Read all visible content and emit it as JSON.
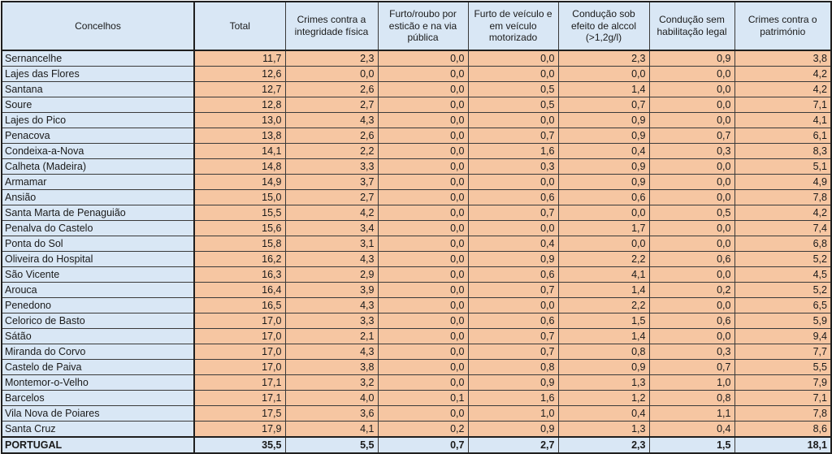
{
  "chart_data": {
    "type": "table",
    "columns": [
      "Concelhos",
      "Total",
      "Crimes contra a integridade física",
      "Furto/roubo por esticão e na via pública",
      "Furto de veículo e em veículo motorizado",
      "Condução sob efeito de alccol (>1,2g/l)",
      "Condução sem habilitação legal",
      "Crimes contra o património"
    ],
    "rows": [
      {
        "name": "Sernancelhe",
        "values": [
          "11,7",
          "2,3",
          "0,0",
          "0,0",
          "2,3",
          "0,9",
          "3,8"
        ]
      },
      {
        "name": "Lajes das Flores",
        "values": [
          "12,6",
          "0,0",
          "0,0",
          "0,0",
          "0,0",
          "0,0",
          "4,2"
        ]
      },
      {
        "name": "Santana",
        "values": [
          "12,7",
          "2,6",
          "0,0",
          "0,5",
          "1,4",
          "0,0",
          "4,2"
        ]
      },
      {
        "name": "Soure",
        "values": [
          "12,8",
          "2,7",
          "0,0",
          "0,5",
          "0,7",
          "0,0",
          "7,1"
        ]
      },
      {
        "name": "Lajes do Pico",
        "values": [
          "13,0",
          "4,3",
          "0,0",
          "0,0",
          "0,9",
          "0,0",
          "4,1"
        ]
      },
      {
        "name": "Penacova",
        "values": [
          "13,8",
          "2,6",
          "0,0",
          "0,7",
          "0,9",
          "0,7",
          "6,1"
        ]
      },
      {
        "name": "Condeixa-a-Nova",
        "values": [
          "14,1",
          "2,2",
          "0,0",
          "1,6",
          "0,4",
          "0,3",
          "8,3"
        ]
      },
      {
        "name": "Calheta (Madeira)",
        "values": [
          "14,8",
          "3,3",
          "0,0",
          "0,3",
          "0,9",
          "0,0",
          "5,1"
        ]
      },
      {
        "name": "Armamar",
        "values": [
          "14,9",
          "3,7",
          "0,0",
          "0,0",
          "0,9",
          "0,0",
          "4,9"
        ]
      },
      {
        "name": "Ansião",
        "values": [
          "15,0",
          "2,7",
          "0,0",
          "0,6",
          "0,6",
          "0,0",
          "7,8"
        ]
      },
      {
        "name": "Santa Marta de Penaguião",
        "values": [
          "15,5",
          "4,2",
          "0,0",
          "0,7",
          "0,0",
          "0,5",
          "4,2"
        ]
      },
      {
        "name": "Penalva do Castelo",
        "values": [
          "15,6",
          "3,4",
          "0,0",
          "0,0",
          "1,7",
          "0,0",
          "7,4"
        ]
      },
      {
        "name": "Ponta do Sol",
        "values": [
          "15,8",
          "3,1",
          "0,0",
          "0,4",
          "0,0",
          "0,0",
          "6,8"
        ]
      },
      {
        "name": "Oliveira do Hospital",
        "values": [
          "16,2",
          "4,3",
          "0,0",
          "0,9",
          "2,2",
          "0,6",
          "5,2"
        ]
      },
      {
        "name": "São Vicente",
        "values": [
          "16,3",
          "2,9",
          "0,0",
          "0,6",
          "4,1",
          "0,0",
          "4,5"
        ]
      },
      {
        "name": "Arouca",
        "values": [
          "16,4",
          "3,9",
          "0,0",
          "0,7",
          "1,4",
          "0,2",
          "5,2"
        ]
      },
      {
        "name": "Penedono",
        "values": [
          "16,5",
          "4,3",
          "0,0",
          "0,0",
          "2,2",
          "0,0",
          "6,5"
        ]
      },
      {
        "name": "Celorico de Basto",
        "values": [
          "17,0",
          "3,3",
          "0,0",
          "0,6",
          "1,5",
          "0,6",
          "5,9"
        ]
      },
      {
        "name": "Sátão",
        "values": [
          "17,0",
          "2,1",
          "0,0",
          "0,7",
          "1,4",
          "0,0",
          "9,4"
        ]
      },
      {
        "name": "Miranda do Corvo",
        "values": [
          "17,0",
          "4,3",
          "0,0",
          "0,7",
          "0,8",
          "0,3",
          "7,7"
        ]
      },
      {
        "name": "Castelo de Paiva",
        "values": [
          "17,0",
          "3,8",
          "0,0",
          "0,8",
          "0,9",
          "0,7",
          "5,5"
        ]
      },
      {
        "name": "Montemor-o-Velho",
        "values": [
          "17,1",
          "3,2",
          "0,0",
          "0,9",
          "1,3",
          "1,0",
          "7,9"
        ]
      },
      {
        "name": "Barcelos",
        "values": [
          "17,1",
          "4,0",
          "0,1",
          "1,6",
          "1,2",
          "0,8",
          "7,1"
        ]
      },
      {
        "name": "Vila Nova de Poiares",
        "values": [
          "17,5",
          "3,6",
          "0,0",
          "1,0",
          "0,4",
          "1,1",
          "7,8"
        ]
      },
      {
        "name": "Santa Cruz",
        "values": [
          "17,9",
          "4,1",
          "0,2",
          "0,9",
          "1,3",
          "0,4",
          "8,6"
        ]
      }
    ],
    "total_row": {
      "name": "PORTUGAL",
      "values": [
        "35,5",
        "5,5",
        "0,7",
        "2,7",
        "2,3",
        "1,5",
        "18,1"
      ]
    },
    "colors": {
      "blue_fill": "#d9e7f5",
      "orange_fill": "#f6c6a2",
      "grid_border": "#3a3a3a",
      "frame_border": "#1f1f1f",
      "text": "#1a1a1a"
    }
  }
}
